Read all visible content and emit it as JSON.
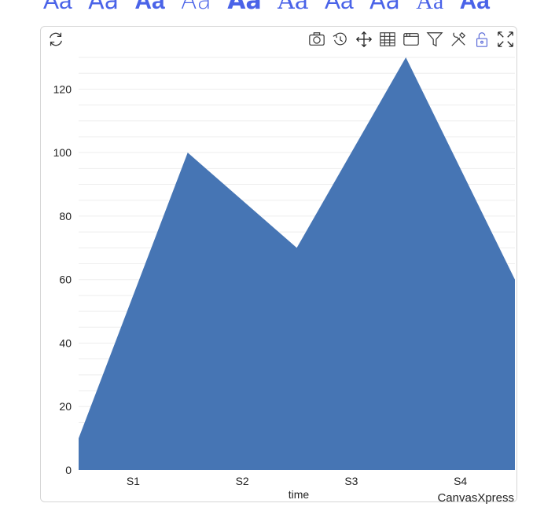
{
  "font_samples": [
    "Aa",
    "Aa",
    "Aa",
    "Aa",
    "Aa",
    "Aa",
    "Aa",
    "Aa",
    "Aa",
    "Aa"
  ],
  "toolbar": {
    "left_icon": "refresh-icon",
    "icons": [
      "camera-icon",
      "history-icon",
      "move-icon",
      "table-icon",
      "window-icon",
      "filter-icon",
      "tools-icon",
      "unlock-icon",
      "fullscreen-icon"
    ]
  },
  "colors": {
    "area": "#4675b4",
    "accent": "#4a63e8",
    "grid": "#eeeeee",
    "text": "#222222"
  },
  "chart_data": {
    "type": "area",
    "categories": [
      "S1",
      "S2",
      "S3",
      "S4"
    ],
    "x": [
      "",
      "S1",
      "",
      "S2",
      "",
      "S3",
      "",
      "S4",
      ""
    ],
    "values": [
      10,
      55,
      100,
      85,
      70,
      100,
      130,
      95,
      60
    ],
    "xlabel": "time",
    "ylabel": "",
    "ylim": [
      0,
      130
    ],
    "yticks": [
      0,
      20,
      40,
      60,
      80,
      100,
      120
    ],
    "grid": true,
    "legend": "none",
    "watermark": "CanvasXpress"
  }
}
